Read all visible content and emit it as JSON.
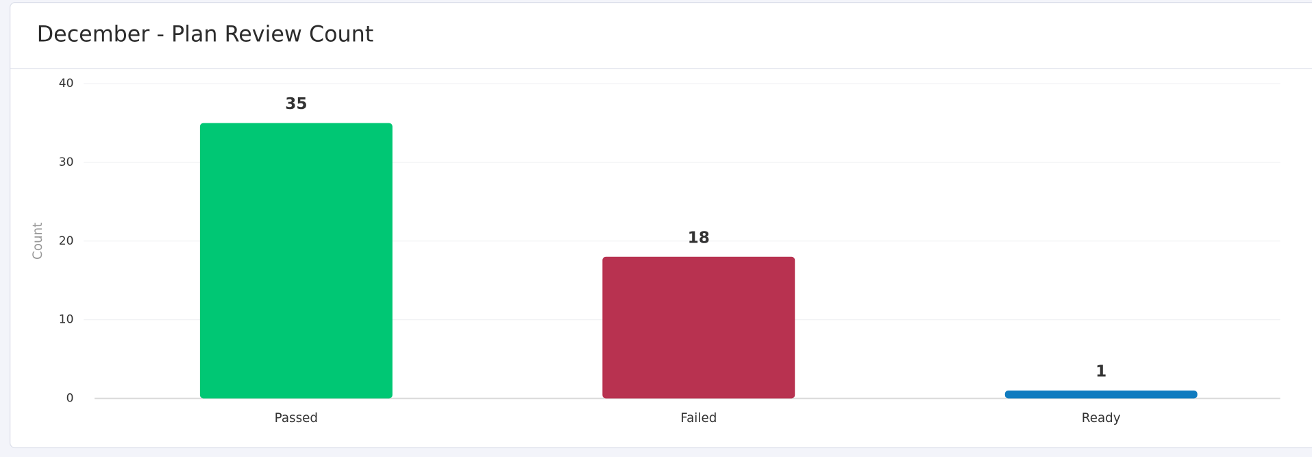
{
  "chart_data": {
    "type": "bar",
    "title": "December - Plan Review Count",
    "categories": [
      "Passed",
      "Failed",
      "Ready"
    ],
    "values": [
      35,
      18,
      1
    ],
    "colors": [
      "#00c774",
      "#b83250",
      "#0f7bbf"
    ],
    "ylabel": "Count",
    "ylim": [
      0,
      40
    ],
    "yticks": [
      0,
      10,
      20,
      30,
      40
    ],
    "grid": true
  }
}
